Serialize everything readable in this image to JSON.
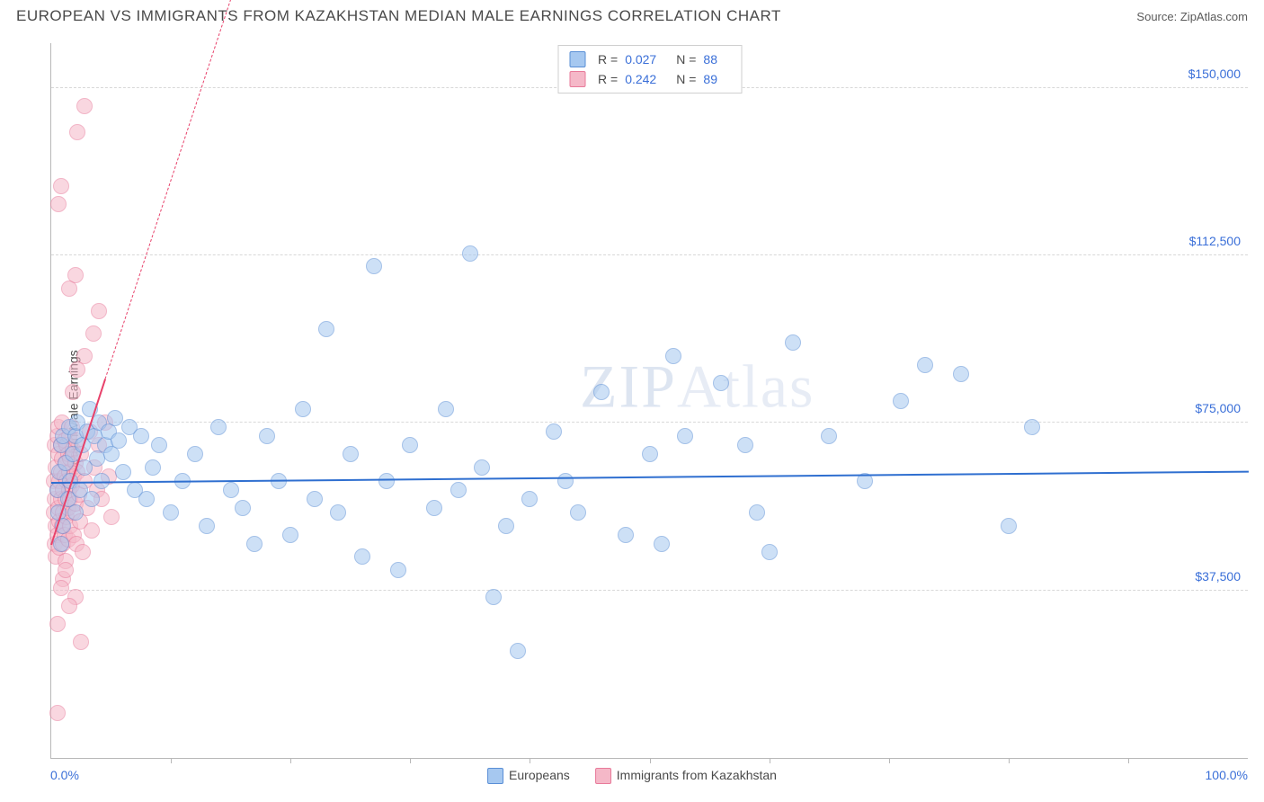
{
  "header": {
    "title": "EUROPEAN VS IMMIGRANTS FROM KAZAKHSTAN MEDIAN MALE EARNINGS CORRELATION CHART",
    "source_label": "Source:",
    "source_value": "ZipAtlas.com"
  },
  "chart": {
    "type": "scatter",
    "ylabel": "Median Male Earnings",
    "xlim": [
      0,
      100
    ],
    "ylim": [
      0,
      160000
    ],
    "x_min_label": "0.0%",
    "x_max_label": "100.0%",
    "y_ticks": [
      37500,
      75000,
      112500,
      150000
    ],
    "y_tick_labels": [
      "$37,500",
      "$75,000",
      "$112,500",
      "$150,000"
    ],
    "x_tick_positions": [
      10,
      20,
      30,
      40,
      50,
      60,
      70,
      80,
      90
    ],
    "background_color": "#ffffff",
    "grid_color": "#d8d8d8",
    "axis_color": "#b8b8b8",
    "tick_label_color": "#3a6fd8",
    "marker_radius": 9,
    "marker_opacity": 0.55,
    "watermark": {
      "text1": "ZIP",
      "text2": "Atlas"
    },
    "series": [
      {
        "name": "Europeans",
        "label": "Europeans",
        "fill_color": "#a6c8f0",
        "stroke_color": "#5a8fd6",
        "trend_color": "#2f6fd0",
        "R_label": "R =",
        "R": "0.027",
        "N_label": "N =",
        "N": "88",
        "trend": {
          "x1": 0,
          "y1": 62000,
          "x2": 100,
          "y2": 64500,
          "dash_after_x": 100
        },
        "points": [
          [
            0.5,
            60000
          ],
          [
            0.6,
            55000
          ],
          [
            0.7,
            64000
          ],
          [
            0.8,
            48000
          ],
          [
            0.8,
            70000
          ],
          [
            1.0,
            72000
          ],
          [
            1.0,
            52000
          ],
          [
            1.2,
            66000
          ],
          [
            1.4,
            58000
          ],
          [
            1.5,
            74000
          ],
          [
            1.6,
            62000
          ],
          [
            1.8,
            68000
          ],
          [
            2.0,
            55000
          ],
          [
            2.0,
            72000
          ],
          [
            2.2,
            75000
          ],
          [
            2.4,
            60000
          ],
          [
            2.6,
            70000
          ],
          [
            2.8,
            65000
          ],
          [
            3.0,
            73000
          ],
          [
            3.2,
            78000
          ],
          [
            3.4,
            58000
          ],
          [
            3.6,
            72000
          ],
          [
            3.8,
            67000
          ],
          [
            4.0,
            75000
          ],
          [
            4.2,
            62000
          ],
          [
            4.5,
            70000
          ],
          [
            4.8,
            73000
          ],
          [
            5.0,
            68000
          ],
          [
            5.3,
            76000
          ],
          [
            5.6,
            71000
          ],
          [
            6.0,
            64000
          ],
          [
            6.5,
            74000
          ],
          [
            7.0,
            60000
          ],
          [
            7.5,
            72000
          ],
          [
            8.0,
            58000
          ],
          [
            8.5,
            65000
          ],
          [
            9.0,
            70000
          ],
          [
            10.0,
            55000
          ],
          [
            11.0,
            62000
          ],
          [
            12.0,
            68000
          ],
          [
            13.0,
            52000
          ],
          [
            14.0,
            74000
          ],
          [
            15.0,
            60000
          ],
          [
            16.0,
            56000
          ],
          [
            17.0,
            48000
          ],
          [
            18.0,
            72000
          ],
          [
            19.0,
            62000
          ],
          [
            20.0,
            50000
          ],
          [
            21.0,
            78000
          ],
          [
            22.0,
            58000
          ],
          [
            23.0,
            96000
          ],
          [
            24.0,
            55000
          ],
          [
            25.0,
            68000
          ],
          [
            26.0,
            45000
          ],
          [
            27.0,
            110000
          ],
          [
            28.0,
            62000
          ],
          [
            29.0,
            42000
          ],
          [
            30.0,
            70000
          ],
          [
            32.0,
            56000
          ],
          [
            33.0,
            78000
          ],
          [
            34.0,
            60000
          ],
          [
            35.0,
            113000
          ],
          [
            36.0,
            65000
          ],
          [
            37.0,
            36000
          ],
          [
            38.0,
            52000
          ],
          [
            39.0,
            24000
          ],
          [
            40.0,
            58000
          ],
          [
            42.0,
            73000
          ],
          [
            43.0,
            62000
          ],
          [
            44.0,
            55000
          ],
          [
            46.0,
            82000
          ],
          [
            48.0,
            50000
          ],
          [
            50.0,
            68000
          ],
          [
            51.0,
            48000
          ],
          [
            52.0,
            90000
          ],
          [
            53.0,
            72000
          ],
          [
            56.0,
            84000
          ],
          [
            58.0,
            70000
          ],
          [
            59.0,
            55000
          ],
          [
            60.0,
            46000
          ],
          [
            62.0,
            93000
          ],
          [
            65.0,
            72000
          ],
          [
            68.0,
            62000
          ],
          [
            71.0,
            80000
          ],
          [
            73.0,
            88000
          ],
          [
            76.0,
            86000
          ],
          [
            80.0,
            52000
          ],
          [
            82.0,
            74000
          ]
        ]
      },
      {
        "name": "Immigrants from Kazakhstan",
        "label": "Immigrants from Kazakhstan",
        "fill_color": "#f5b8c8",
        "stroke_color": "#e87a9a",
        "trend_color": "#e8416a",
        "R_label": "R =",
        "R": "0.242",
        "N_label": "N =",
        "N": "89",
        "trend": {
          "x1": 0,
          "y1": 48000,
          "x2": 4.5,
          "y2": 85000,
          "dash_after_x": 4.5,
          "dash_x2": 15,
          "dash_y2": 170000
        },
        "points": [
          [
            0.2,
            55000
          ],
          [
            0.2,
            62000
          ],
          [
            0.3,
            48000
          ],
          [
            0.3,
            58000
          ],
          [
            0.3,
            70000
          ],
          [
            0.4,
            52000
          ],
          [
            0.4,
            65000
          ],
          [
            0.4,
            45000
          ],
          [
            0.5,
            60000
          ],
          [
            0.5,
            72000
          ],
          [
            0.5,
            50000
          ],
          [
            0.6,
            68000
          ],
          [
            0.6,
            56000
          ],
          [
            0.6,
            74000
          ],
          [
            0.7,
            62000
          ],
          [
            0.7,
            47000
          ],
          [
            0.7,
            53000
          ],
          [
            0.8,
            70000
          ],
          [
            0.8,
            58000
          ],
          [
            0.8,
            64000
          ],
          [
            0.9,
            52000
          ],
          [
            0.9,
            67000
          ],
          [
            0.9,
            75000
          ],
          [
            1.0,
            60000
          ],
          [
            1.0,
            48000
          ],
          [
            1.0,
            55000
          ],
          [
            1.1,
            63000
          ],
          [
            1.1,
            71000
          ],
          [
            1.1,
            50000
          ],
          [
            1.2,
            58000
          ],
          [
            1.2,
            66000
          ],
          [
            1.2,
            44000
          ],
          [
            1.3,
            62000
          ],
          [
            1.3,
            70000
          ],
          [
            1.3,
            54000
          ],
          [
            1.4,
            68000
          ],
          [
            1.4,
            56000
          ],
          [
            1.4,
            49000
          ],
          [
            1.5,
            64000
          ],
          [
            1.5,
            72000
          ],
          [
            1.5,
            60000
          ],
          [
            1.6,
            52000
          ],
          [
            1.6,
            67000
          ],
          [
            1.6,
            58000
          ],
          [
            1.7,
            74000
          ],
          [
            1.7,
            61000
          ],
          [
            1.8,
            55000
          ],
          [
            1.8,
            69000
          ],
          [
            1.9,
            63000
          ],
          [
            1.9,
            50000
          ],
          [
            2.0,
            66000
          ],
          [
            2.0,
            57000
          ],
          [
            2.1,
            71000
          ],
          [
            2.1,
            48000
          ],
          [
            2.2,
            64000
          ],
          [
            2.3,
            59000
          ],
          [
            2.4,
            53000
          ],
          [
            2.5,
            68000
          ],
          [
            2.6,
            46000
          ],
          [
            2.8,
            62000
          ],
          [
            3.0,
            56000
          ],
          [
            3.2,
            73000
          ],
          [
            3.4,
            51000
          ],
          [
            3.6,
            65000
          ],
          [
            3.8,
            60000
          ],
          [
            4.0,
            70000
          ],
          [
            4.2,
            58000
          ],
          [
            4.5,
            75000
          ],
          [
            4.8,
            63000
          ],
          [
            5.0,
            54000
          ],
          [
            1.0,
            40000
          ],
          [
            0.8,
            38000
          ],
          [
            1.2,
            42000
          ],
          [
            2.0,
            36000
          ],
          [
            1.5,
            34000
          ],
          [
            0.5,
            30000
          ],
          [
            2.5,
            26000
          ],
          [
            1.8,
            82000
          ],
          [
            2.2,
            87000
          ],
          [
            2.8,
            90000
          ],
          [
            3.5,
            95000
          ],
          [
            4.0,
            100000
          ],
          [
            1.5,
            105000
          ],
          [
            2.0,
            108000
          ],
          [
            0.6,
            124000
          ],
          [
            0.8,
            128000
          ],
          [
            2.2,
            140000
          ],
          [
            2.8,
            146000
          ],
          [
            0.5,
            10000
          ]
        ]
      }
    ],
    "bottom_legend": [
      {
        "swatch_fill": "#a6c8f0",
        "swatch_stroke": "#5a8fd6",
        "key": 0
      },
      {
        "swatch_fill": "#f5b8c8",
        "swatch_stroke": "#e87a9a",
        "key": 1
      }
    ]
  }
}
